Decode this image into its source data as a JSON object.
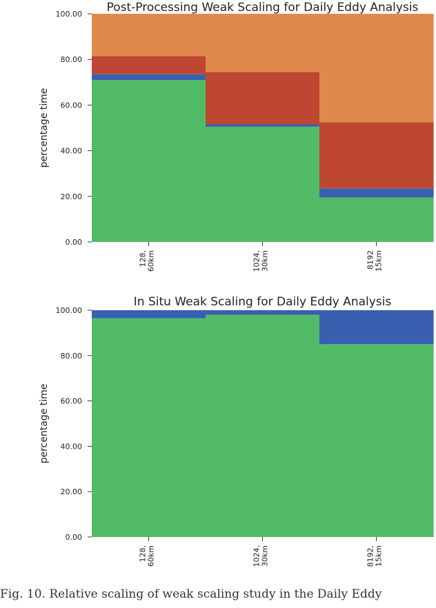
{
  "chart_data": [
    {
      "type": "bar",
      "stacked": true,
      "title": "Post-Processing Weak Scaling for Daily Eddy Analysis",
      "xlabel": "",
      "ylabel": "percentage time",
      "ylim": [
        0,
        100
      ],
      "yticks": [
        "0.00",
        "20.00",
        "40.00",
        "60.00",
        "80.00",
        "100.00"
      ],
      "categories": [
        [
          "128,",
          "60km"
        ],
        [
          "1024,",
          "30km"
        ],
        [
          "8192",
          "15km"
        ]
      ],
      "series": [
        {
          "color": "#52bb67",
          "values": [
            71,
            50.5,
            19.5
          ]
        },
        {
          "color": "#3a5fb0",
          "values": [
            2.5,
            1.0,
            4.0
          ]
        },
        {
          "color": "#bd4731",
          "values": [
            8.0,
            23.0,
            29.0
          ]
        },
        {
          "color": "#e0894c",
          "values": [
            18.5,
            25.5,
            47.5
          ]
        }
      ],
      "grid": false,
      "legend": "none"
    },
    {
      "type": "bar",
      "stacked": true,
      "title": "In Situ Weak Scaling for Daily Eddy Analysis",
      "xlabel": "",
      "ylabel": "percentage time",
      "ylim": [
        0,
        100
      ],
      "yticks": [
        "0.00",
        "20.00",
        "40.00",
        "60.00",
        "80.00",
        "100.00"
      ],
      "categories": [
        [
          "128,",
          "60km"
        ],
        [
          "1024,",
          "30km"
        ],
        [
          "8192,",
          "15km"
        ]
      ],
      "series": [
        {
          "color": "#52bb67",
          "values": [
            96.5,
            98.0,
            85.0
          ]
        },
        {
          "color": "#3a5fb0",
          "values": [
            3.5,
            2.0,
            15.0
          ]
        }
      ],
      "grid": false,
      "legend": "none"
    }
  ],
  "caption": "Fig. 10.  Relative scaling of weak scaling study in the Daily Eddy"
}
